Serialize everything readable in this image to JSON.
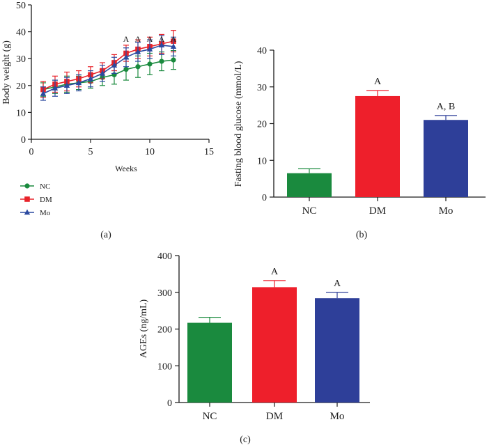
{
  "chart_data": [
    {
      "type": "line",
      "panel_label": "(a)",
      "xlabel": "Weeks",
      "ylabel": "Body weight (g)",
      "xlim": [
        0,
        15
      ],
      "ylim": [
        0,
        50
      ],
      "xticks": [
        0,
        5,
        10,
        15
      ],
      "yticks": [
        0,
        10,
        20,
        30,
        40,
        50
      ],
      "x": [
        1,
        2,
        3,
        4,
        5,
        6,
        7,
        8,
        9,
        10,
        11,
        12
      ],
      "series": [
        {
          "name": "NC",
          "color": "#1a8a3e",
          "marker": "circle",
          "values": [
            18.5,
            19.5,
            20.5,
            21,
            21.5,
            23,
            24,
            26,
            27,
            28,
            29,
            29.5
          ],
          "errors": [
            2.5,
            2.5,
            3,
            2.5,
            2.5,
            3,
            3.5,
            4,
            4,
            4,
            3.5,
            3.5
          ]
        },
        {
          "name": "DM",
          "color": "#e8232a",
          "marker": "square",
          "values": [
            18.5,
            20.5,
            21.5,
            22.5,
            24,
            25.5,
            28.5,
            32,
            33.5,
            34.5,
            35.5,
            36.5
          ],
          "errors": [
            3,
            3,
            3.5,
            3,
            3,
            3,
            3,
            3,
            3.5,
            3.5,
            3.5,
            4
          ]
        },
        {
          "name": "Mo",
          "color": "#2c4aa0",
          "marker": "triangle",
          "values": [
            17,
            19,
            20,
            21,
            22.5,
            24.5,
            27.5,
            30.5,
            32.5,
            33.5,
            35,
            34.5
          ],
          "errors": [
            2.5,
            3,
            3,
            3,
            3,
            3,
            3,
            3.5,
            3.5,
            3.5,
            3.5,
            3.5
          ]
        }
      ],
      "annotations": [
        {
          "x": 8,
          "text": "A"
        },
        {
          "x": 9,
          "text": "A"
        },
        {
          "x": 10,
          "text": "A"
        },
        {
          "x": 11,
          "text": "A"
        },
        {
          "x": 12,
          "text": "A"
        }
      ]
    },
    {
      "type": "bar",
      "panel_label": "(b)",
      "ylabel": "Fasting blood glucose (mmol/L)",
      "ylim": [
        0,
        40
      ],
      "yticks": [
        0,
        10,
        20,
        30,
        40
      ],
      "categories": [
        "NC",
        "DM",
        "Mo"
      ],
      "values": [
        6.5,
        27.5,
        21
      ],
      "errors": [
        1.2,
        1.5,
        1.2
      ],
      "colors": [
        "#1a8a3e",
        "#ee1f2b",
        "#2e3f99"
      ],
      "bar_labels": [
        "",
        "A",
        "A, B"
      ]
    },
    {
      "type": "bar",
      "panel_label": "(c)",
      "ylabel": "AGEs (ng/mL)",
      "ylim": [
        0,
        400
      ],
      "yticks": [
        0,
        100,
        200,
        300,
        400
      ],
      "categories": [
        "NC",
        "DM",
        "Mo"
      ],
      "values": [
        217,
        314,
        284
      ],
      "errors": [
        15,
        18,
        16
      ],
      "colors": [
        "#1a8a3e",
        "#ee1f2b",
        "#2e3f99"
      ],
      "bar_labels": [
        "",
        "A",
        "A"
      ]
    }
  ]
}
